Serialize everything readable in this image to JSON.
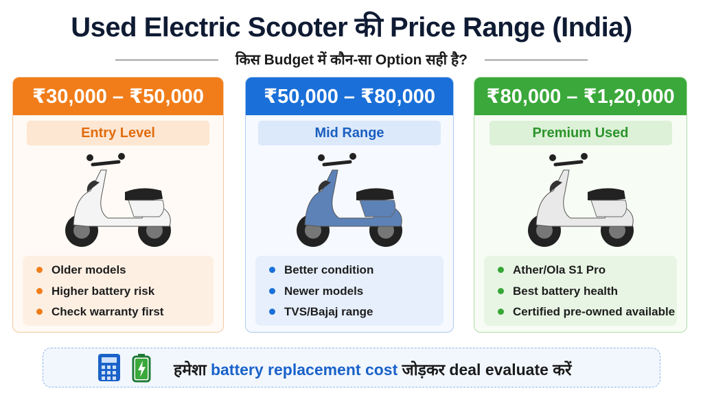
{
  "header": {
    "title": "Used Electric Scooter की Price Range (India)",
    "subtitle": "किस Budget में कौन-सा Option सही है?"
  },
  "cards": [
    {
      "price": "₹30,000 – ₹50,000",
      "level": "Entry Level",
      "points": [
        "Older models",
        "Higher battery risk",
        "Check warranty first"
      ]
    },
    {
      "price": "₹50,000 – ₹80,000",
      "level": "Mid Range",
      "points": [
        "Better condition",
        "Newer models",
        "TVS/Bajaj range"
      ]
    },
    {
      "price": "₹80,000 – ₹1,20,000",
      "level": "Premium Used",
      "points": [
        "Ather/Ola S1 Pro",
        "Best battery health",
        "Certified pre-owned available"
      ]
    }
  ],
  "footer": {
    "before": "हमेशा",
    "highlight": "battery replacement cost",
    "after": "जोड़कर deal evaluate करें"
  }
}
